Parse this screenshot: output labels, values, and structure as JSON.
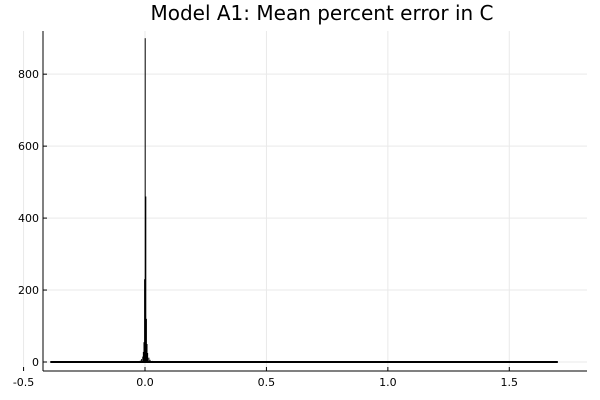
{
  "chart_data": {
    "type": "bar",
    "title": "Model A1: Mean percent error in C",
    "xlabel": "",
    "ylabel": "",
    "xlim": [
      -0.42,
      1.82
    ],
    "ylim": [
      -25,
      920
    ],
    "x_ticks": [
      -0.5,
      0.0,
      0.5,
      1.0,
      1.5
    ],
    "x_tick_labels": [
      "-0.5",
      "0.0",
      "0.5",
      "1.0",
      "1.5"
    ],
    "y_ticks": [
      0,
      200,
      400,
      600,
      800
    ],
    "y_tick_labels": [
      "0",
      "200",
      "400",
      "600",
      "800"
    ],
    "grid": true,
    "legend": "none",
    "bar_color": "#000000",
    "bin_width": 0.0025,
    "x_range": [
      -0.39,
      1.7
    ],
    "bins": [
      {
        "x": -0.05,
        "count": 1
      },
      {
        "x": -0.03,
        "count": 2
      },
      {
        "x": -0.02,
        "count": 4
      },
      {
        "x": -0.015,
        "count": 8
      },
      {
        "x": -0.01,
        "count": 15
      },
      {
        "x": -0.0075,
        "count": 28
      },
      {
        "x": -0.005,
        "count": 55
      },
      {
        "x": -0.0025,
        "count": 230
      },
      {
        "x": 0.0,
        "count": 900
      },
      {
        "x": 0.0025,
        "count": 460
      },
      {
        "x": 0.005,
        "count": 120
      },
      {
        "x": 0.0075,
        "count": 50
      },
      {
        "x": 0.01,
        "count": 25
      },
      {
        "x": 0.015,
        "count": 12
      },
      {
        "x": 0.02,
        "count": 6
      },
      {
        "x": 0.03,
        "count": 3
      },
      {
        "x": 0.04,
        "count": 1
      }
    ]
  }
}
